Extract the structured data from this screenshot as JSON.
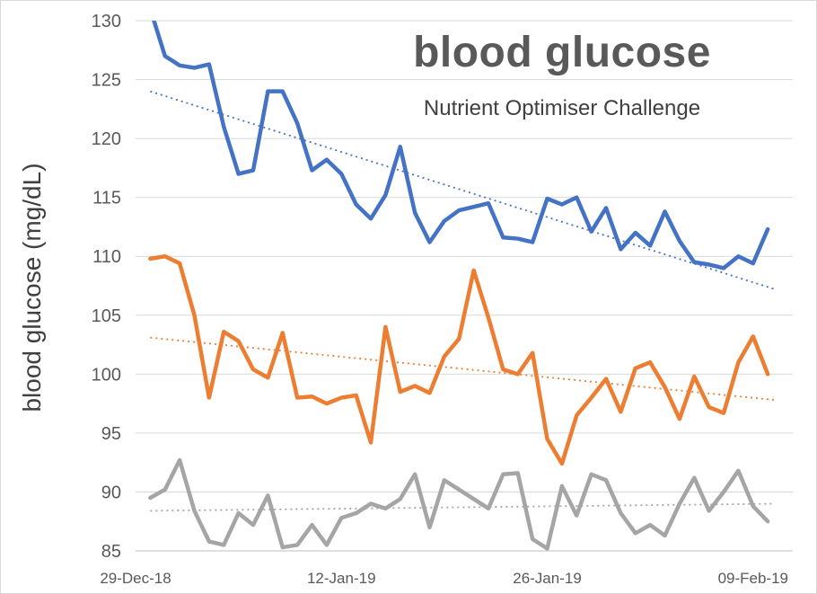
{
  "chart_data": {
    "type": "line",
    "title": "blood glucose",
    "subtitle": "Nutrient Optimiser Challenge",
    "ylabel": "blood glucose (mg/dL)",
    "xlabel": "",
    "ylim": [
      85,
      130
    ],
    "y_tick_step": 5,
    "x_domain": [
      0,
      44.7
    ],
    "x_ticks": [
      {
        "day": 0,
        "label": "29-Dec-18"
      },
      {
        "day": 14,
        "label": "12-Jan-19"
      },
      {
        "day": 28,
        "label": "26-Jan-19"
      },
      {
        "day": 42,
        "label": "09-Feb-19"
      }
    ],
    "grid": "horizontal",
    "legend": "none",
    "colors": {
      "grid": "#d9d9d9",
      "axis_line": "#bfbfbf",
      "axis_text": "#595959",
      "title": "#595959",
      "subtitle": "#404040"
    },
    "series": [
      {
        "name": "blue",
        "color": "#4472C4",
        "x_start_day": 1,
        "values": [
          131,
          127,
          126.2,
          126.0,
          126.3,
          121.0,
          117.0,
          117.3,
          124.0,
          124.0,
          121.3,
          117.3,
          118.2,
          117.0,
          114.4,
          113.2,
          115.2,
          119.3,
          113.7,
          111.2,
          113.0,
          113.9,
          114.2,
          114.5,
          111.6,
          111.5,
          111.2,
          114.9,
          114.4,
          115.0,
          112.1,
          114.1,
          110.6,
          112.0,
          110.9,
          113.8,
          111.3,
          109.5,
          109.3,
          109.0,
          110.0,
          109.4,
          112.3
        ],
        "trend": {
          "start_value": 124.0,
          "end_value": 107.2
        }
      },
      {
        "name": "orange",
        "color": "#ED7D31",
        "x_start_day": 1,
        "values": [
          109.8,
          110.0,
          109.4,
          105.0,
          98.0,
          103.6,
          102.8,
          100.4,
          99.7,
          103.5,
          98.0,
          98.1,
          97.5,
          98.0,
          98.2,
          94.2,
          104.0,
          98.5,
          99.0,
          98.4,
          101.5,
          103.0,
          108.8,
          104.8,
          100.4,
          100.0,
          101.8,
          94.5,
          92.4,
          96.5,
          98.0,
          99.6,
          96.8,
          100.5,
          101.0,
          98.9,
          96.2,
          99.8,
          97.2,
          96.7,
          101.0,
          103.2,
          100.0
        ],
        "trend": {
          "start_value": 103.1,
          "end_value": 97.8
        }
      },
      {
        "name": "grey",
        "color": "#A5A5A5",
        "x_start_day": 1,
        "values": [
          89.5,
          90.2,
          92.7,
          88.4,
          85.8,
          85.5,
          88.2,
          87.2,
          89.7,
          85.3,
          85.5,
          87.2,
          85.5,
          87.8,
          88.2,
          89.0,
          88.6,
          89.4,
          91.5,
          87.0,
          91.0,
          90.2,
          89.4,
          88.6,
          91.5,
          91.6,
          86.0,
          85.2,
          90.5,
          88.0,
          91.5,
          91.0,
          88.2,
          86.5,
          87.2,
          86.3,
          89.0,
          91.2,
          88.4,
          90.0,
          91.8,
          88.8,
          87.5
        ],
        "trend": {
          "start_value": 88.4,
          "end_value": 89.0
        }
      }
    ]
  }
}
